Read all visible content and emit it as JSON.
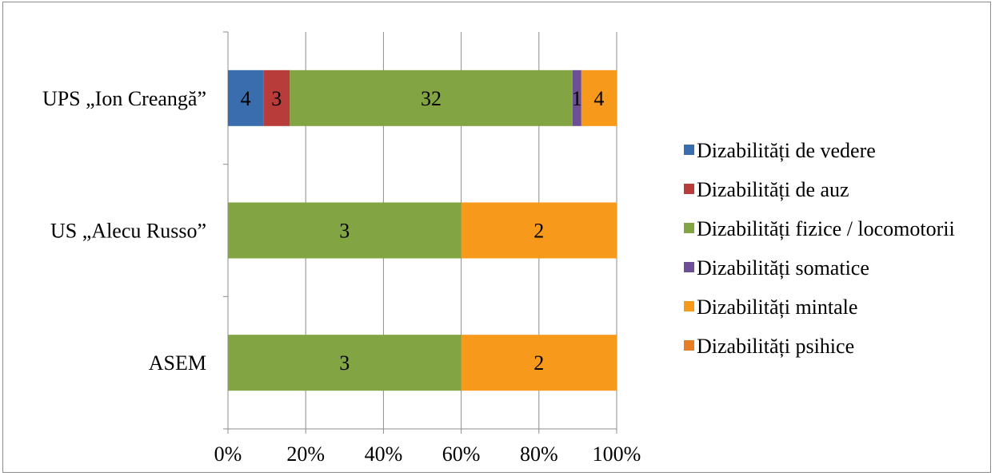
{
  "chart_data": {
    "type": "bar",
    "orientation": "horizontal",
    "stacked": "percent",
    "categories": [
      "UPS „Ion Creangă”",
      "US „Alecu Russo”",
      "ASEM"
    ],
    "series": [
      {
        "name": "Dizabilități de vedere",
        "color": "#3a6dae",
        "values": [
          4,
          0,
          0
        ]
      },
      {
        "name": "Dizabilități de auz",
        "color": "#b83c3a",
        "values": [
          3,
          0,
          0
        ]
      },
      {
        "name": "Dizabilități fizice / locomotorii",
        "color": "#82a442",
        "values": [
          32,
          3,
          3
        ]
      },
      {
        "name": "Dizabilități somatice",
        "color": "#6c4f94",
        "values": [
          1,
          0,
          0
        ]
      },
      {
        "name": "Dizabilități mintale",
        "color": "#f79a1c",
        "values": [
          4,
          2,
          2
        ]
      },
      {
        "name": "Dizabilități psihice",
        "color": "#e87d25",
        "values": [
          0,
          0,
          0
        ]
      }
    ],
    "x_ticks": [
      "0%",
      "20%",
      "40%",
      "60%",
      "80%",
      "100%"
    ],
    "xlim": [
      0,
      100
    ],
    "grid": true,
    "legend_position": "right"
  }
}
